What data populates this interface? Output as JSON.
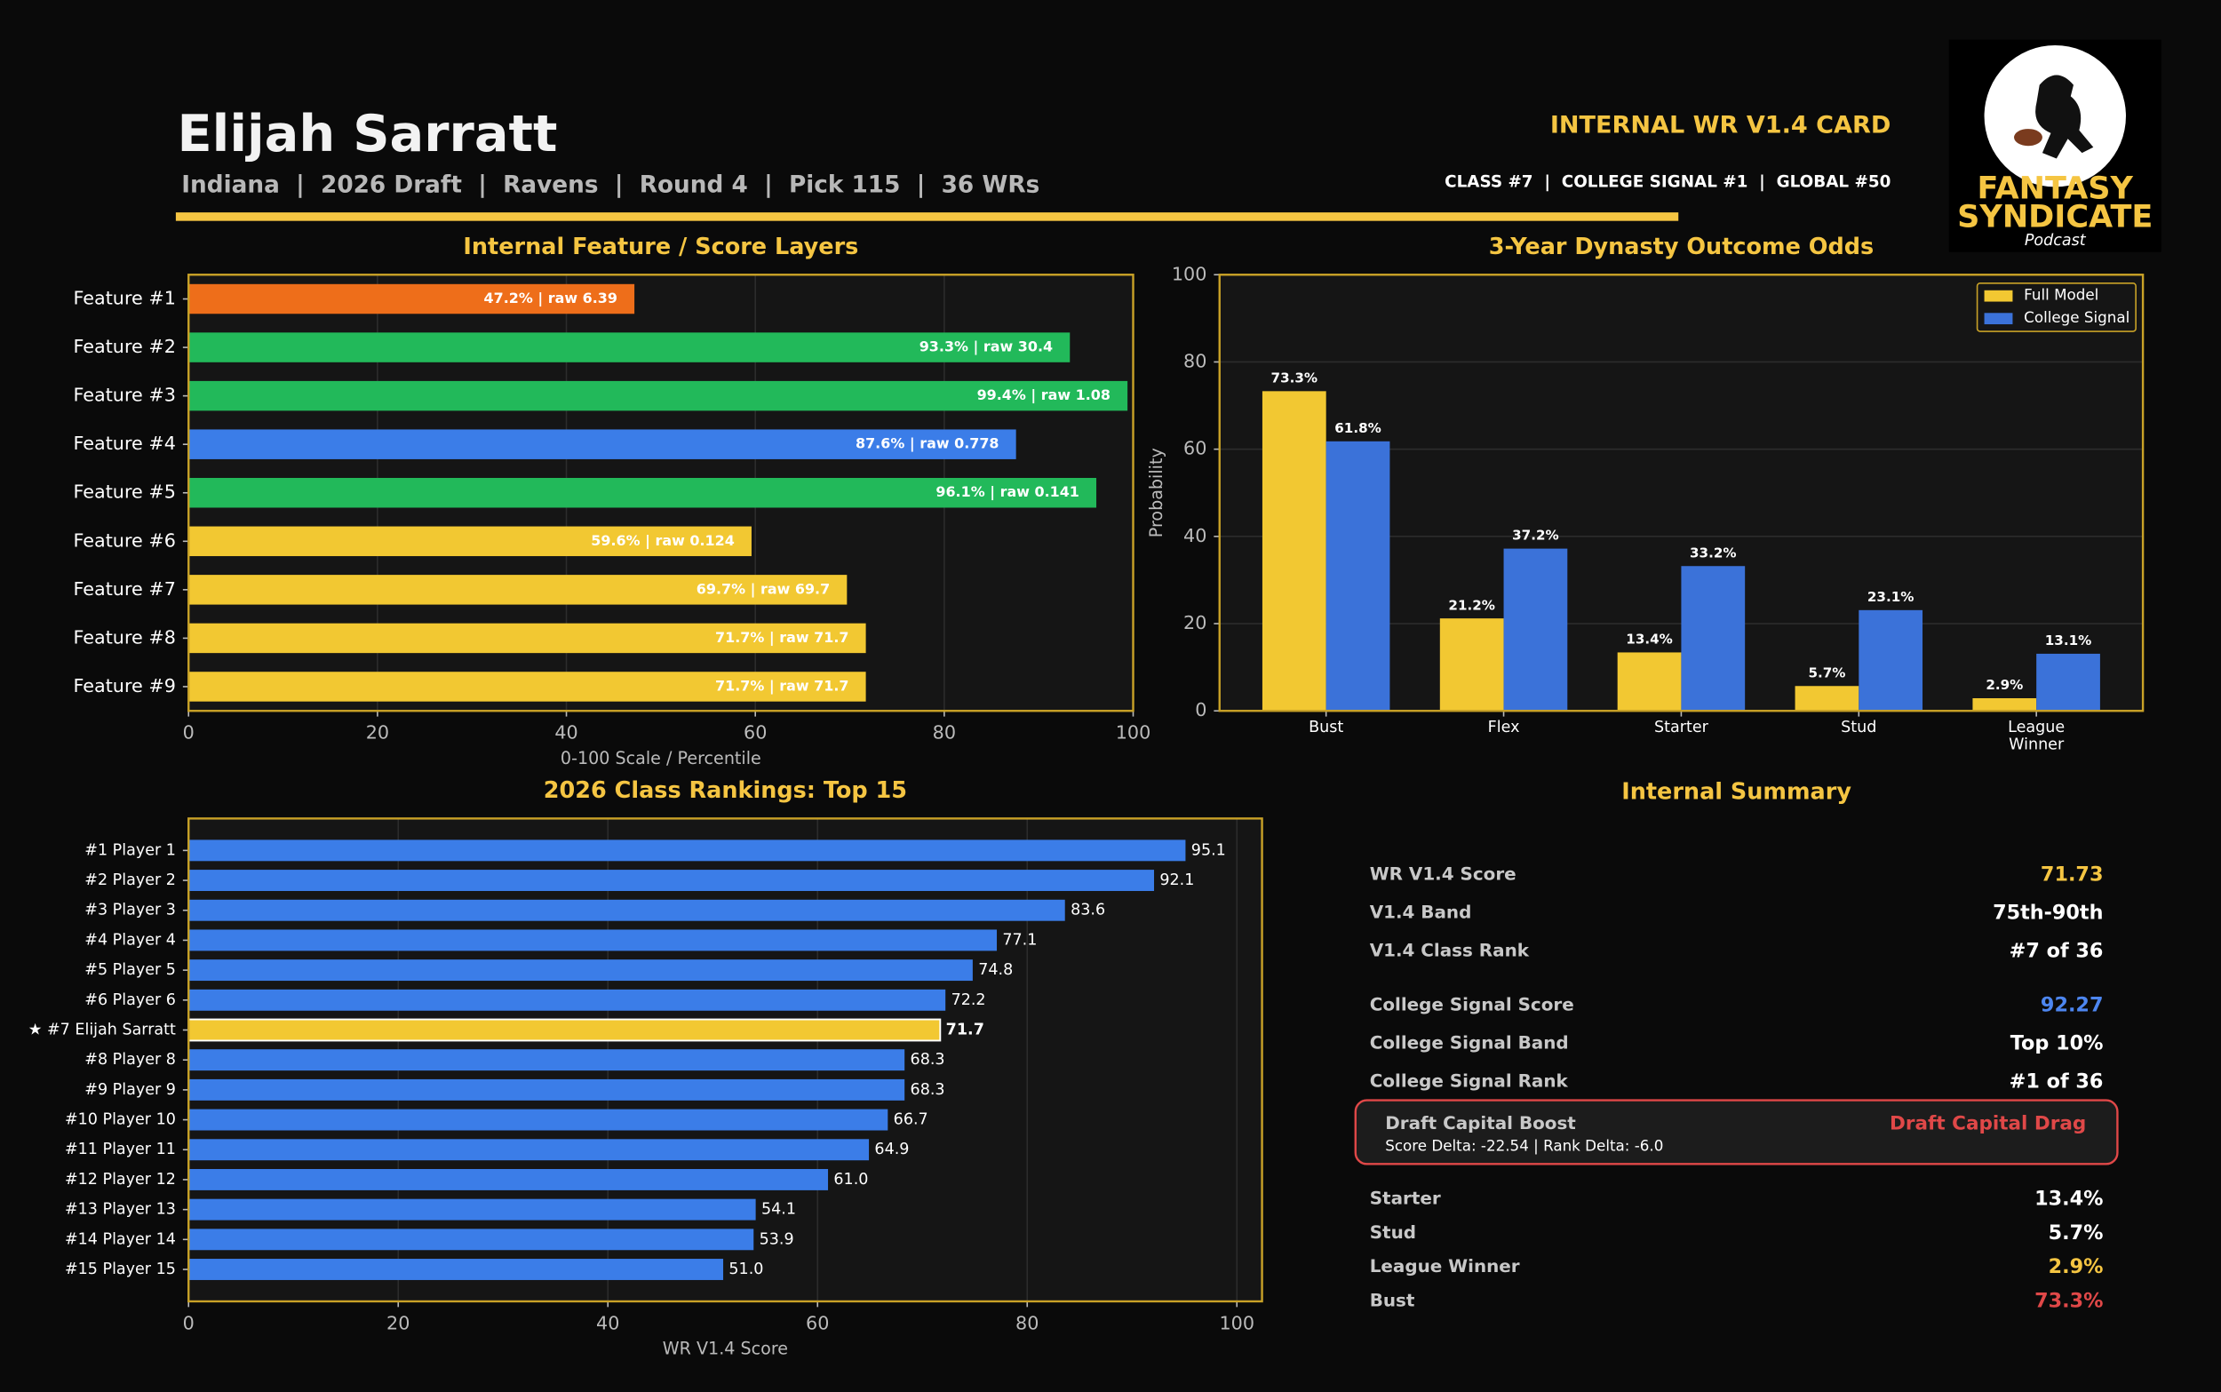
{
  "header": {
    "name": "Elijah Sarratt",
    "subtitle": "Indiana  |  2026 Draft  |  Ravens  |  Round 4  |  Pick 115  |  36 WRs",
    "card_title": "INTERNAL WR V1.4 CARD",
    "card_ranks": "CLASS #7  |  COLLEGE SIGNAL #1  |  GLOBAL #50"
  },
  "logo": {
    "line1": "FANTASY",
    "line2": "SYNDICATE",
    "line3": "Podcast"
  },
  "chart_data": [
    {
      "type": "hbar",
      "title": "Internal Feature / Score Layers",
      "xlabel": "0-100 Scale / Percentile",
      "categories": [
        "Feature #1",
        "Feature #2",
        "Feature #3",
        "Feature #4",
        "Feature #5",
        "Feature #6",
        "Feature #7",
        "Feature #8",
        "Feature #9"
      ],
      "values": [
        47.2,
        93.3,
        99.4,
        87.6,
        96.1,
        59.6,
        69.7,
        71.7,
        71.7
      ],
      "value_labels": [
        "47.2% | raw 6.39",
        "93.3% | raw 30.4",
        "99.4% | raw 1.08",
        "87.6% | raw 0.778",
        "96.1% | raw 0.141",
        "59.6% | raw 0.124",
        "69.7% | raw 69.7",
        "71.7% | raw 71.7",
        "71.7% | raw 71.7"
      ],
      "colors": [
        "#ee6e1a",
        "#22b95a",
        "#22b95a",
        "#3b7de8",
        "#22b95a",
        "#f2c832",
        "#f2c832",
        "#f2c832",
        "#f2c832"
      ],
      "xlim": [
        0,
        100
      ],
      "xticks": [
        0,
        20,
        40,
        60,
        80,
        100
      ],
      "grid": true
    },
    {
      "type": "bar",
      "title": "3-Year Dynasty Outcome Odds",
      "ylabel": "Probability",
      "categories": [
        "Bust",
        "Flex",
        "Starter",
        "Stud",
        "League Winner"
      ],
      "series": [
        {
          "name": "Full Model",
          "color": "#f2c832",
          "values": [
            73.3,
            21.2,
            13.4,
            5.7,
            2.9
          ],
          "value_labels": [
            "73.3%",
            "21.2%",
            "13.4%",
            "5.7%",
            "2.9%"
          ]
        },
        {
          "name": "College Signal",
          "color": "#3b72d9",
          "values": [
            61.8,
            37.2,
            33.2,
            23.1,
            13.1
          ],
          "value_labels": [
            "61.8%",
            "37.2%",
            "33.2%",
            "23.1%",
            "13.1%"
          ]
        }
      ],
      "ylim": [
        0,
        100
      ],
      "yticks": [
        0,
        20,
        40,
        60,
        80,
        100
      ],
      "grid": true,
      "legend": "upper right"
    },
    {
      "type": "hbar",
      "title": "2026 Class Rankings: Top 15",
      "xlabel": "WR V1.4 Score",
      "categories": [
        "#1 Player 1",
        "#2 Player 2",
        "#3 Player 3",
        "#4 Player 4",
        "#5 Player 5",
        "#6 Player 6",
        "★ #7 Elijah Sarratt",
        "#8 Player 8",
        "#9 Player 9",
        "#10 Player 10",
        "#11 Player 11",
        "#12 Player 12",
        "#13 Player 13",
        "#14 Player 14",
        "#15 Player 15"
      ],
      "values": [
        95.1,
        92.1,
        83.6,
        77.1,
        74.8,
        72.2,
        71.7,
        68.3,
        68.3,
        66.7,
        64.9,
        61.0,
        54.1,
        53.9,
        51.0
      ],
      "value_labels": [
        "95.1",
        "92.1",
        "83.6",
        "77.1",
        "74.8",
        "72.2",
        "71.7",
        "68.3",
        "68.3",
        "66.7",
        "64.9",
        "61.0",
        "54.1",
        "53.9",
        "51.0"
      ],
      "colors": [
        "#3b7de8",
        "#3b7de8",
        "#3b7de8",
        "#3b7de8",
        "#3b7de8",
        "#3b7de8",
        "#f2c832",
        "#3b7de8",
        "#3b7de8",
        "#3b7de8",
        "#3b7de8",
        "#3b7de8",
        "#3b7de8",
        "#3b7de8",
        "#3b7de8"
      ],
      "xlim": [
        0,
        102.4
      ],
      "xticks": [
        0,
        20,
        40,
        60,
        80,
        100
      ],
      "grid": true
    }
  ],
  "summary": {
    "title": "Internal Summary",
    "score_rows": [
      {
        "label": "WR V1.4 Score",
        "value": "71.73",
        "color": "#f5c542"
      },
      {
        "label": "V1.4 Band",
        "value": "75th-90th",
        "color": "#ffffff"
      },
      {
        "label": "V1.4 Class Rank",
        "value": "#7 of 36",
        "color": "#ffffff"
      }
    ],
    "signal_rows": [
      {
        "label": "College Signal Score",
        "value": "92.27",
        "color": "#4d86f0"
      },
      {
        "label": "College Signal Band",
        "value": "Top 10%",
        "color": "#ffffff"
      },
      {
        "label": "College Signal Rank",
        "value": "#1 of 36",
        "color": "#ffffff"
      }
    ],
    "alert": {
      "label": "Draft Capital Boost",
      "status": "Draft Capital Drag",
      "detail": "Score Delta: -22.54   |   Rank Delta: -6.0",
      "color": "#e04848"
    },
    "odds_rows": [
      {
        "label": "Starter",
        "value": "13.4%",
        "color": "#ffffff"
      },
      {
        "label": "Stud",
        "value": "5.7%",
        "color": "#ffffff"
      },
      {
        "label": "League Winner",
        "value": "2.9%",
        "color": "#f5c542"
      },
      {
        "label": "Bust",
        "value": "73.3%",
        "color": "#e04848"
      }
    ]
  }
}
